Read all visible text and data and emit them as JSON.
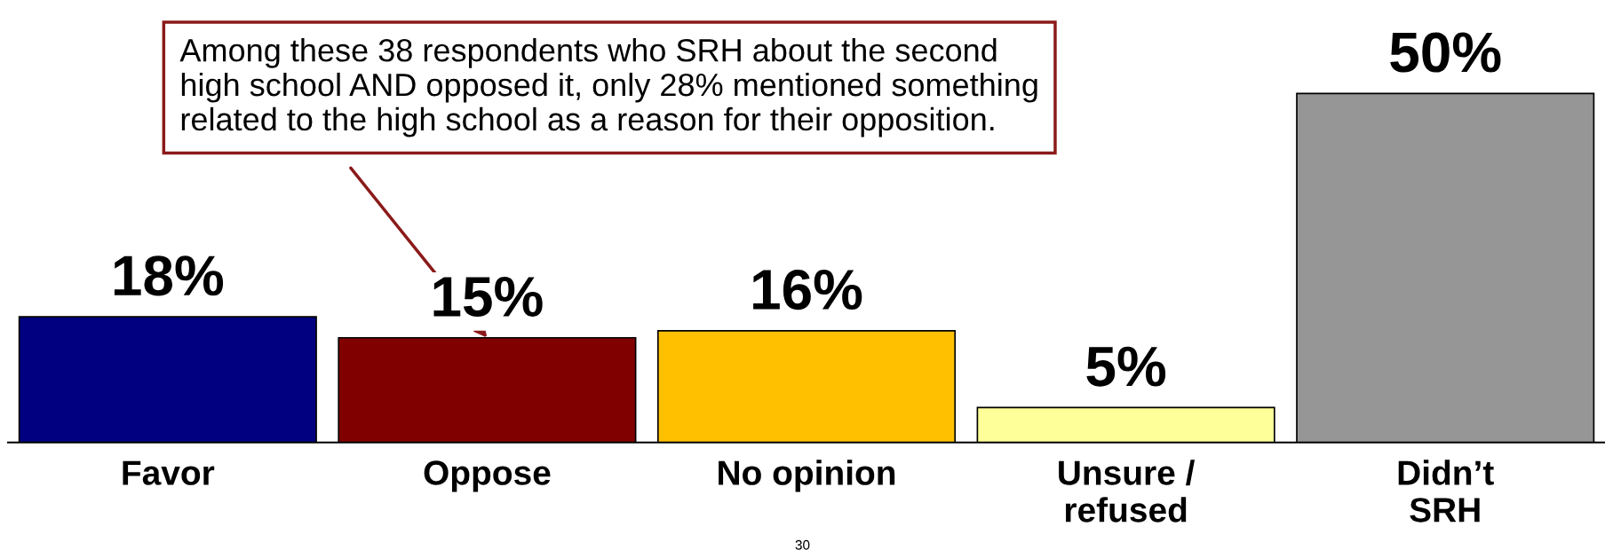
{
  "chart_data": {
    "type": "bar",
    "categories": [
      "Favor",
      "Oppose",
      "No opinion",
      "Unsure /\nrefused",
      "Didn’t\nSRH"
    ],
    "values": [
      18,
      15,
      16,
      5,
      50
    ],
    "colors": [
      "#000080",
      "#800000",
      "#ffc000",
      "#ffff99",
      "#969696"
    ],
    "value_labels": [
      "18%",
      "15%",
      "16%",
      "5%",
      "50%"
    ],
    "annotations": [
      {
        "text": "Among these 38 respondents who SRH about the second\nhigh school AND opposed it, only 28% mentioned something\nrelated to the high school as a reason for their opposition.",
        "x": "Oppose",
        "y": 15
      },
      "30"
    ],
    "grid": false,
    "legend": false
  }
}
